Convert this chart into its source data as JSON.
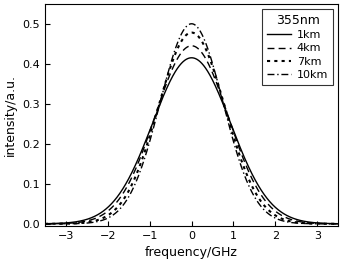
{
  "title": "355nm",
  "xlabel": "frequency/GHz",
  "ylabel": "intensity/a.u.",
  "xlim": [
    -3.5,
    3.5
  ],
  "ylim": [
    -0.005,
    0.55
  ],
  "xticks": [
    -3,
    -2,
    -1,
    0,
    1,
    2,
    3
  ],
  "yticks": [
    0.0,
    0.1,
    0.2,
    0.3,
    0.4,
    0.5
  ],
  "curves": [
    {
      "label": "1km",
      "linestyle": "solid",
      "color": "#000000",
      "amplitude": 0.415,
      "sigma": 0.93,
      "linewidth": 1.0
    },
    {
      "label": "4km",
      "linestyle": "dashed",
      "color": "#000000",
      "amplitude": 0.445,
      "sigma": 0.87,
      "linewidth": 1.0,
      "dashes": [
        5,
        3
      ]
    },
    {
      "label": "7km",
      "linestyle": "dotted",
      "color": "#000000",
      "amplitude": 0.478,
      "sigma": 0.8,
      "linewidth": 1.5,
      "dashes": [
        1.5,
        2
      ]
    },
    {
      "label": "10km",
      "linestyle": "dashdot",
      "color": "#000000",
      "amplitude": 0.5,
      "sigma": 0.75,
      "linewidth": 1.0,
      "dashes": [
        5,
        2,
        1,
        2
      ]
    }
  ],
  "legend_loc": "upper right",
  "background_color": "#ffffff",
  "title_fontsize": 9,
  "label_fontsize": 9,
  "tick_fontsize": 8,
  "legend_fontsize": 8
}
